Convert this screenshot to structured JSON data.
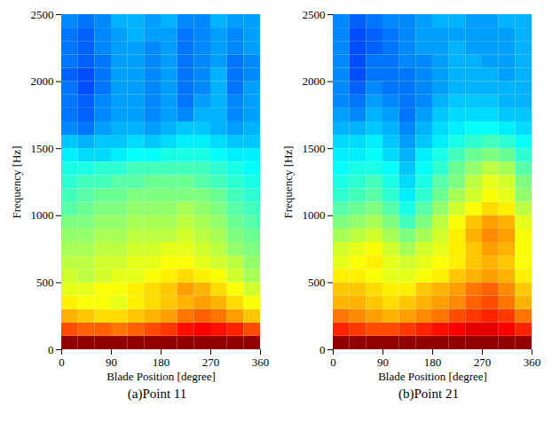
{
  "chart_data": [
    {
      "type": "heatmap",
      "title": "(a)Point 11",
      "x_label": "Blade Position [degree]",
      "y_label": "Frequency [Hz]",
      "xlim": [
        0,
        360
      ],
      "xticks": [
        0,
        90,
        180,
        270,
        360
      ],
      "ylim": [
        0,
        2500
      ],
      "yticks": [
        0,
        500,
        1000,
        1500,
        2000,
        2500
      ],
      "x_bins": [
        0,
        30,
        60,
        90,
        120,
        150,
        180,
        210,
        240,
        270,
        300,
        330,
        360
      ],
      "y_bins": [
        0,
        100,
        200,
        300,
        400,
        500,
        600,
        700,
        800,
        900,
        1000,
        1100,
        1200,
        1300,
        1400,
        1500,
        1600,
        1700,
        1800,
        1900,
        2000,
        2100,
        2200,
        2300,
        2400,
        2500
      ],
      "zlim": [
        0,
        10
      ],
      "cells": [
        [
          9.8,
          9.8,
          9.8,
          9.8,
          9.8,
          9.8,
          9.8,
          9.8,
          9.8,
          9.8,
          9.8,
          9.8
        ],
        [
          8.0,
          7.8,
          7.8,
          7.6,
          7.8,
          8.0,
          8.2,
          8.6,
          8.8,
          8.6,
          8.4,
          8.0
        ],
        [
          7.0,
          6.8,
          6.6,
          6.6,
          6.8,
          7.0,
          7.2,
          7.6,
          7.8,
          7.6,
          7.2,
          6.8
        ],
        [
          6.4,
          6.2,
          6.2,
          6.0,
          6.4,
          6.6,
          6.8,
          7.0,
          7.2,
          7.0,
          6.6,
          6.2
        ],
        [
          6.0,
          6.0,
          6.2,
          6.2,
          6.4,
          6.6,
          6.8,
          7.2,
          7.0,
          6.6,
          6.2,
          5.8
        ],
        [
          5.8,
          5.6,
          5.8,
          6.0,
          6.0,
          6.2,
          6.4,
          6.6,
          6.4,
          6.2,
          5.8,
          5.4
        ],
        [
          5.6,
          5.6,
          5.8,
          5.8,
          6.0,
          6.0,
          6.2,
          6.2,
          6.0,
          5.8,
          5.6,
          5.2
        ],
        [
          5.4,
          5.4,
          5.6,
          5.6,
          5.8,
          5.8,
          6.0,
          6.0,
          5.8,
          5.6,
          5.2,
          5.0
        ],
        [
          5.2,
          5.2,
          5.4,
          5.4,
          5.6,
          5.6,
          5.6,
          5.8,
          5.6,
          5.4,
          5.0,
          4.8
        ],
        [
          5.0,
          5.0,
          5.2,
          5.2,
          5.4,
          5.4,
          5.4,
          5.6,
          5.4,
          5.2,
          4.8,
          4.6
        ],
        [
          4.6,
          4.8,
          5.0,
          5.0,
          5.2,
          5.2,
          5.2,
          5.4,
          5.2,
          5.0,
          4.6,
          4.4
        ],
        [
          4.4,
          4.6,
          4.8,
          4.8,
          5.0,
          5.0,
          5.0,
          5.0,
          5.0,
          4.8,
          4.4,
          4.2
        ],
        [
          4.2,
          4.4,
          4.4,
          4.6,
          4.6,
          4.8,
          4.8,
          4.8,
          4.6,
          4.4,
          4.2,
          4.0
        ],
        [
          4.0,
          4.0,
          4.2,
          4.2,
          4.4,
          4.4,
          4.4,
          4.4,
          4.4,
          4.2,
          4.0,
          3.8
        ],
        [
          3.6,
          3.4,
          3.4,
          3.6,
          3.8,
          3.8,
          4.0,
          4.0,
          4.0,
          3.8,
          3.6,
          3.6
        ],
        [
          3.2,
          3.0,
          3.2,
          3.2,
          3.4,
          3.2,
          3.4,
          3.6,
          3.6,
          3.4,
          3.2,
          3.2
        ],
        [
          2.6,
          2.4,
          2.8,
          3.0,
          3.0,
          2.8,
          3.0,
          3.2,
          3.2,
          3.0,
          2.8,
          3.0
        ],
        [
          2.4,
          2.2,
          2.6,
          2.8,
          2.8,
          2.6,
          2.8,
          2.6,
          3.0,
          3.0,
          2.6,
          2.8
        ],
        [
          2.4,
          2.2,
          2.6,
          2.8,
          2.8,
          2.6,
          2.8,
          2.4,
          2.8,
          3.0,
          2.6,
          2.8
        ],
        [
          2.4,
          2.0,
          2.4,
          2.8,
          2.8,
          2.6,
          2.8,
          2.4,
          2.6,
          3.0,
          2.4,
          2.8
        ],
        [
          2.2,
          2.0,
          2.4,
          2.8,
          2.8,
          2.6,
          2.8,
          2.4,
          2.6,
          3.0,
          2.4,
          2.6
        ],
        [
          2.4,
          2.2,
          2.4,
          2.8,
          2.8,
          2.6,
          2.8,
          2.4,
          2.6,
          2.8,
          2.4,
          2.6
        ],
        [
          2.4,
          2.2,
          2.6,
          2.8,
          2.8,
          2.6,
          2.8,
          2.4,
          2.6,
          2.8,
          2.6,
          2.8
        ],
        [
          2.4,
          2.2,
          2.6,
          2.8,
          3.0,
          2.8,
          2.8,
          2.4,
          2.6,
          2.8,
          2.6,
          2.8
        ],
        [
          2.6,
          2.4,
          2.6,
          3.0,
          3.0,
          2.8,
          3.0,
          2.6,
          2.6,
          3.0,
          2.8,
          2.8
        ]
      ]
    },
    {
      "type": "heatmap",
      "title": "(b)Point 21",
      "x_label": "Blade Position [degree]",
      "y_label": "Frequency [Hz]",
      "xlim": [
        0,
        360
      ],
      "xticks": [
        0,
        90,
        180,
        270,
        360
      ],
      "ylim": [
        0,
        2500
      ],
      "yticks": [
        0,
        500,
        1000,
        1500,
        2000,
        2500
      ],
      "x_bins": [
        0,
        30,
        60,
        90,
        120,
        150,
        180,
        210,
        240,
        270,
        300,
        330,
        360
      ],
      "y_bins": [
        0,
        100,
        200,
        300,
        400,
        500,
        600,
        700,
        800,
        900,
        1000,
        1100,
        1200,
        1300,
        1400,
        1500,
        1600,
        1700,
        1800,
        1900,
        2000,
        2100,
        2200,
        2300,
        2400,
        2500
      ],
      "zlim": [
        0,
        10
      ],
      "cells": [
        [
          9.8,
          9.8,
          9.8,
          9.8,
          9.8,
          9.8,
          9.8,
          9.8,
          9.8,
          9.8,
          9.8,
          9.8
        ],
        [
          8.4,
          8.2,
          8.0,
          8.0,
          8.2,
          8.4,
          8.6,
          8.8,
          9.0,
          9.0,
          8.8,
          8.4
        ],
        [
          7.6,
          7.4,
          7.2,
          7.0,
          7.2,
          7.4,
          7.6,
          8.0,
          8.2,
          8.4,
          8.2,
          7.6
        ],
        [
          7.0,
          7.0,
          6.8,
          6.6,
          6.8,
          7.0,
          7.2,
          7.4,
          7.8,
          8.0,
          7.6,
          7.0
        ],
        [
          6.8,
          6.8,
          6.6,
          6.4,
          6.4,
          6.8,
          7.0,
          7.2,
          7.6,
          7.8,
          7.4,
          6.8
        ],
        [
          6.4,
          6.4,
          6.2,
          6.0,
          6.0,
          6.2,
          6.4,
          6.8,
          7.0,
          7.2,
          7.0,
          6.4
        ],
        [
          6.0,
          6.2,
          6.4,
          6.0,
          5.8,
          6.0,
          6.2,
          6.4,
          6.8,
          7.0,
          6.8,
          6.2
        ],
        [
          5.8,
          6.0,
          6.2,
          5.8,
          5.4,
          5.8,
          6.0,
          6.4,
          6.8,
          7.2,
          7.0,
          6.2
        ],
        [
          5.4,
          5.6,
          5.8,
          5.4,
          5.0,
          5.4,
          5.8,
          6.4,
          7.0,
          7.4,
          7.2,
          6.2
        ],
        [
          5.0,
          5.2,
          5.4,
          5.0,
          4.4,
          5.0,
          5.6,
          6.2,
          6.8,
          7.2,
          7.0,
          6.0
        ],
        [
          4.6,
          4.8,
          5.0,
          4.6,
          4.0,
          4.6,
          5.2,
          5.8,
          6.2,
          6.6,
          6.4,
          5.6
        ],
        [
          4.2,
          4.4,
          4.6,
          4.2,
          3.6,
          4.2,
          4.8,
          5.4,
          5.8,
          6.2,
          6.0,
          5.2
        ],
        [
          4.0,
          4.2,
          4.4,
          4.0,
          3.4,
          4.0,
          4.6,
          5.0,
          5.6,
          6.0,
          5.8,
          5.0
        ],
        [
          3.8,
          4.0,
          4.0,
          3.8,
          3.2,
          3.8,
          4.2,
          4.8,
          5.2,
          5.6,
          5.4,
          4.6
        ],
        [
          3.6,
          3.6,
          3.8,
          3.4,
          3.0,
          3.6,
          4.0,
          4.4,
          4.8,
          5.0,
          4.8,
          4.2
        ],
        [
          3.4,
          3.4,
          3.6,
          3.2,
          2.8,
          3.2,
          3.6,
          4.0,
          4.2,
          4.4,
          4.2,
          3.8
        ],
        [
          3.0,
          3.0,
          3.2,
          3.0,
          2.6,
          3.0,
          3.4,
          3.6,
          3.8,
          3.8,
          3.6,
          3.4
        ],
        [
          2.8,
          2.6,
          3.0,
          2.8,
          2.4,
          2.8,
          3.2,
          3.4,
          3.4,
          3.4,
          3.2,
          3.2
        ],
        [
          2.6,
          2.4,
          2.8,
          2.6,
          2.4,
          2.6,
          3.0,
          3.2,
          3.2,
          3.2,
          3.0,
          3.0
        ],
        [
          2.6,
          2.2,
          2.6,
          2.4,
          2.4,
          2.6,
          2.8,
          3.0,
          3.0,
          3.0,
          3.0,
          3.0
        ],
        [
          2.6,
          2.0,
          2.4,
          2.4,
          2.4,
          2.6,
          2.8,
          3.0,
          3.0,
          3.0,
          2.8,
          3.0
        ],
        [
          2.6,
          2.0,
          2.4,
          2.4,
          2.6,
          2.6,
          2.8,
          3.0,
          3.0,
          2.8,
          2.8,
          3.0
        ],
        [
          2.6,
          2.0,
          2.2,
          2.4,
          2.6,
          2.8,
          2.8,
          3.0,
          2.8,
          2.8,
          2.8,
          3.0
        ],
        [
          2.6,
          2.0,
          2.2,
          2.4,
          2.6,
          2.8,
          2.8,
          2.8,
          2.8,
          2.8,
          2.8,
          3.0
        ],
        [
          2.6,
          2.2,
          2.4,
          2.6,
          2.6,
          2.8,
          3.0,
          3.0,
          2.8,
          2.8,
          3.0,
          3.0
        ]
      ]
    }
  ]
}
